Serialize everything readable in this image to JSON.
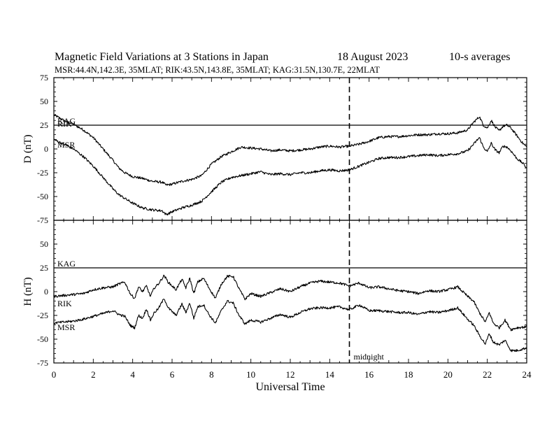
{
  "header": {
    "title": "Magnetic Field Variations at 3 Stations in Japan",
    "date": "18 August  2023",
    "averaging": "10-s averages",
    "stations": "MSR:44.4N,142.3E, 35MLAT;  RIK:43.5N,143.8E, 35MLAT;  KAG:31.5N,130.7E, 22MLAT"
  },
  "chart_data": {
    "type": "line",
    "xlabel": "Universal Time",
    "xlim": [
      0,
      24
    ],
    "xticks": [
      0,
      2,
      4,
      6,
      8,
      10,
      12,
      14,
      16,
      18,
      20,
      22,
      24
    ],
    "midnight": {
      "x": 15,
      "label": "midnight"
    },
    "panels": [
      {
        "id": "D",
        "ylabel": "D (nT)",
        "ylim": [
          -75,
          75
        ],
        "yticks": [
          75,
          50,
          25,
          0,
          -25,
          -50,
          -75
        ],
        "series": [
          {
            "name": "KAG",
            "x": [
              0,
              24
            ],
            "values": [
              25,
              25
            ]
          },
          {
            "name": "RIK",
            "x": [
              0,
              0.5,
              1,
              1.5,
              2,
              2.5,
              3,
              3.3,
              3.6,
              4,
              4.5,
              5,
              5.5,
              5.7,
              6,
              6.5,
              7,
              7.5,
              8,
              8.5,
              9,
              9.5,
              10,
              10.5,
              11,
              11.5,
              12,
              12.5,
              13,
              13.5,
              14,
              14.5,
              15,
              15.5,
              16,
              16.5,
              17,
              17.5,
              18,
              18.5,
              19,
              19.5,
              20,
              20.5,
              21,
              21.3,
              21.6,
              21.8,
              22,
              22.2,
              22.4,
              22.6,
              22.8,
              23,
              23.2,
              23.5,
              23.8,
              24
            ],
            "values": [
              36,
              30,
              26,
              20,
              12,
              0,
              -12,
              -20,
              -25,
              -29,
              -31,
              -34,
              -35,
              -38,
              -37,
              -34,
              -32,
              -28,
              -16,
              -8,
              -3,
              2,
              1,
              0,
              -2,
              -1,
              -2,
              -1,
              0,
              2,
              3,
              2,
              3,
              5,
              8,
              12,
              13,
              13,
              14,
              15,
              15,
              16,
              16,
              17,
              20,
              28,
              34,
              25,
              22,
              30,
              23,
              19,
              24,
              25,
              22,
              14,
              6,
              2
            ]
          },
          {
            "name": "MSR",
            "x": [
              0,
              0.5,
              1,
              1.5,
              2,
              2.5,
              3,
              3.3,
              3.6,
              4,
              4.5,
              5,
              5.5,
              5.7,
              6,
              6.5,
              7,
              7.5,
              8,
              8.5,
              9,
              9.5,
              10,
              10.5,
              11,
              11.5,
              12,
              12.5,
              13,
              13.5,
              14,
              14.5,
              15,
              15.5,
              16,
              16.5,
              17,
              17.5,
              18,
              18.5,
              19,
              19.5,
              20,
              20.5,
              21,
              21.3,
              21.6,
              21.8,
              22,
              22.2,
              22.4,
              22.6,
              22.8,
              23,
              23.2,
              23.5,
              23.8,
              24
            ],
            "values": [
              10,
              5,
              0,
              -8,
              -18,
              -30,
              -42,
              -48,
              -52,
              -57,
              -62,
              -64,
              -65,
              -69,
              -66,
              -62,
              -59,
              -55,
              -45,
              -35,
              -30,
              -28,
              -26,
              -24,
              -27,
              -26,
              -27,
              -25,
              -25,
              -23,
              -22,
              -23,
              -22,
              -18,
              -14,
              -10,
              -9,
              -9,
              -8,
              -7,
              -6,
              -7,
              -6,
              -5,
              -2,
              5,
              12,
              2,
              -3,
              6,
              -1,
              -4,
              3,
              2,
              -2,
              -10,
              -15,
              -20
            ]
          }
        ],
        "labels": [
          "KAG",
          "RIK",
          "MSR"
        ]
      },
      {
        "id": "H",
        "ylabel": "H (nT)",
        "ylim": [
          -75,
          75
        ],
        "yticks": [
          75,
          50,
          25,
          0,
          -25,
          -50,
          -75
        ],
        "series": [
          {
            "name": "KAG",
            "x": [
              0,
              24
            ],
            "values": [
              25,
              25
            ]
          },
          {
            "name": "RIK",
            "x": [
              0,
              0.5,
              1,
              1.5,
              2,
              2.5,
              3,
              3.3,
              3.6,
              3.9,
              4.1,
              4.3,
              4.5,
              4.7,
              4.9,
              5.1,
              5.3,
              5.6,
              5.8,
              6,
              6.2,
              6.5,
              6.7,
              6.9,
              7.1,
              7.3,
              7.6,
              7.9,
              8.2,
              8.5,
              8.8,
              9.1,
              9.4,
              9.7,
              10,
              10.5,
              11,
              11.5,
              12,
              12.5,
              13,
              13.5,
              14,
              14.5,
              15,
              15.5,
              16,
              16.5,
              17,
              17.5,
              18,
              18.5,
              19,
              19.5,
              20,
              20.5,
              21,
              21.3,
              21.6,
              21.9,
              22.1,
              22.3,
              22.6,
              22.9,
              23.2,
              23.5,
              24
            ],
            "values": [
              -5,
              -4,
              -3,
              -2,
              2,
              4,
              5,
              8,
              10,
              -3,
              -7,
              5,
              0,
              6,
              -5,
              4,
              8,
              17,
              10,
              6,
              2,
              13,
              4,
              14,
              -2,
              10,
              14,
              3,
              -7,
              8,
              16,
              16,
              3,
              -8,
              -2,
              -5,
              -1,
              3,
              0,
              5,
              9,
              11,
              10,
              9,
              6,
              9,
              4,
              5,
              3,
              1,
              0,
              -2,
              1,
              0,
              2,
              5,
              -5,
              -10,
              -22,
              -32,
              -22,
              -33,
              -38,
              -30,
              -40,
              -38,
              -37
            ]
          },
          {
            "name": "MSR",
            "x": [
              0,
              0.5,
              1,
              1.5,
              2,
              2.5,
              3,
              3.3,
              3.6,
              3.9,
              4.1,
              4.3,
              4.5,
              4.7,
              4.9,
              5.1,
              5.3,
              5.6,
              5.8,
              6,
              6.2,
              6.5,
              6.7,
              6.9,
              7.1,
              7.3,
              7.6,
              7.9,
              8.2,
              8.5,
              8.8,
              9.1,
              9.4,
              9.7,
              10,
              10.5,
              11,
              11.5,
              12,
              12.5,
              13,
              13.5,
              14,
              14.5,
              15,
              15.5,
              16,
              16.5,
              17,
              17.5,
              18,
              18.5,
              19,
              19.5,
              20,
              20.5,
              21,
              21.3,
              21.6,
              21.9,
              22.1,
              22.3,
              22.6,
              22.9,
              23.2,
              23.5,
              24
            ],
            "values": [
              -33,
              -32,
              -31,
              -29,
              -26,
              -23,
              -20,
              -24,
              -26,
              -36,
              -38,
              -25,
              -28,
              -18,
              -30,
              -22,
              -18,
              -7,
              -17,
              -21,
              -25,
              -13,
              -22,
              -12,
              -28,
              -16,
              -14,
              -25,
              -33,
              -20,
              -10,
              -12,
              -25,
              -34,
              -30,
              -32,
              -28,
              -24,
              -27,
              -22,
              -18,
              -17,
              -17,
              -16,
              -19,
              -14,
              -20,
              -20,
              -21,
              -22,
              -22,
              -24,
              -21,
              -22,
              -20,
              -17,
              -29,
              -35,
              -46,
              -55,
              -44,
              -53,
              -56,
              -51,
              -62,
              -62,
              -59
            ]
          }
        ],
        "labels": [
          "KAG",
          "RIK",
          "MSR"
        ]
      }
    ]
  }
}
